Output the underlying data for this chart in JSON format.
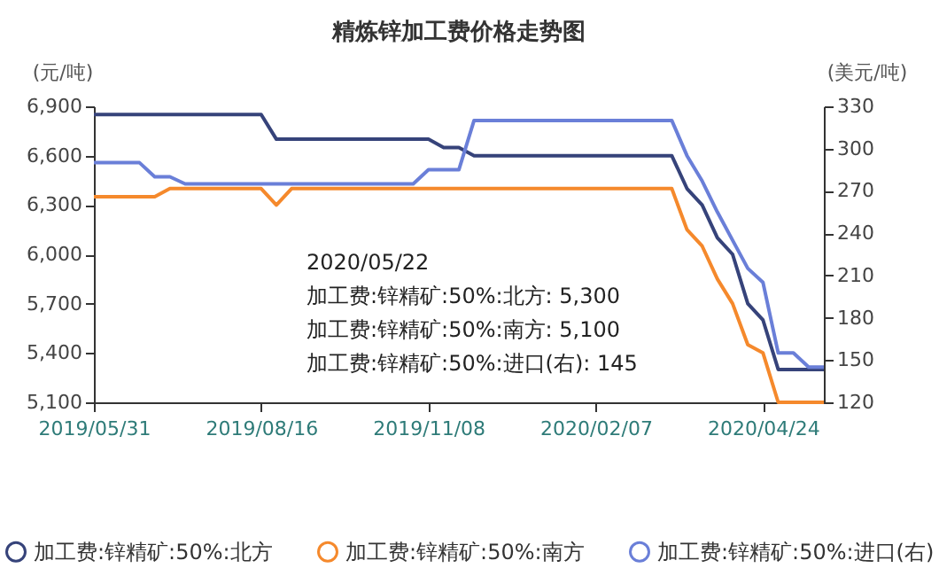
{
  "chart_data": {
    "type": "line",
    "title": "精炼锌加工费价格走势图",
    "ylabel": "(元/吨)",
    "y2label": "(美元/吨)",
    "categories": [
      "2019/05/31",
      null,
      null,
      null,
      null,
      null,
      null,
      null,
      null,
      null,
      null,
      "2019/08/16",
      null,
      null,
      null,
      null,
      null,
      null,
      null,
      null,
      null,
      null,
      "2019/11/08",
      null,
      null,
      null,
      null,
      null,
      null,
      null,
      null,
      null,
      null,
      "2020/02/07",
      null,
      null,
      null,
      null,
      null,
      null,
      null,
      null,
      null,
      null,
      "2020/04/24",
      null,
      null,
      null,
      null
    ],
    "series": [
      {
        "name": "加工费:锌精矿:50%:北方",
        "color": "#36437a",
        "values": [
          6850,
          6850,
          6850,
          6850,
          6850,
          6850,
          6850,
          6850,
          6850,
          6850,
          6850,
          6850,
          6700,
          6700,
          6700,
          6700,
          6700,
          6700,
          6700,
          6700,
          6700,
          6700,
          6700,
          6650,
          6650,
          6600,
          6600,
          6600,
          6600,
          6600,
          6600,
          6600,
          6600,
          6600,
          6600,
          6600,
          6600,
          6600,
          6600,
          6400,
          6300,
          6100,
          6000,
          5700,
          5600,
          5300,
          5300,
          5300,
          5300
        ]
      },
      {
        "name": "加工费:锌精矿:50%:南方",
        "color": "#f5892c",
        "values": [
          6350,
          6350,
          6350,
          6350,
          6350,
          6400,
          6400,
          6400,
          6400,
          6400,
          6400,
          6400,
          6300,
          6400,
          6400,
          6400,
          6400,
          6400,
          6400,
          6400,
          6400,
          6400,
          6400,
          6400,
          6400,
          6400,
          6400,
          6400,
          6400,
          6400,
          6400,
          6400,
          6400,
          6400,
          6400,
          6400,
          6400,
          6400,
          6400,
          6150,
          6050,
          5850,
          5700,
          5450,
          5400,
          5100,
          5100,
          5100,
          5100
        ]
      },
      {
        "name": "加工费:锌精矿:50%:进口(右)",
        "color": "#6a7fd8",
        "axis": "y2",
        "values": [
          290,
          290,
          290,
          290,
          280,
          280,
          275,
          275,
          275,
          275,
          275,
          275,
          275,
          275,
          275,
          275,
          275,
          275,
          275,
          275,
          275,
          275,
          285,
          285,
          285,
          320,
          320,
          320,
          320,
          320,
          320,
          320,
          320,
          320,
          320,
          320,
          320,
          320,
          320,
          295,
          277,
          255,
          235,
          215,
          205,
          155,
          155,
          145,
          145
        ]
      }
    ],
    "ylim": [
      5100,
      6900
    ],
    "yticks": [
      {
        "value": 5100,
        "label": "5,100"
      },
      {
        "value": 5400,
        "label": "5,400"
      },
      {
        "value": 5700,
        "label": "5,700"
      },
      {
        "value": 6000,
        "label": "6,000"
      },
      {
        "value": 6300,
        "label": "6,300"
      },
      {
        "value": 6600,
        "label": "6,600"
      },
      {
        "value": 6900,
        "label": "6,900"
      }
    ],
    "y2lim": [
      120,
      330
    ],
    "y2ticks": [
      120,
      150,
      180,
      210,
      240,
      270,
      300,
      330
    ],
    "legend": "bottom",
    "annotations": [
      "2020/05/22",
      "加工费:锌精矿:50%:北方: 5,300",
      "加工费:锌精矿:50%:南方: 5,100",
      "加工费:锌精矿:50%:进口(右): 145"
    ]
  }
}
